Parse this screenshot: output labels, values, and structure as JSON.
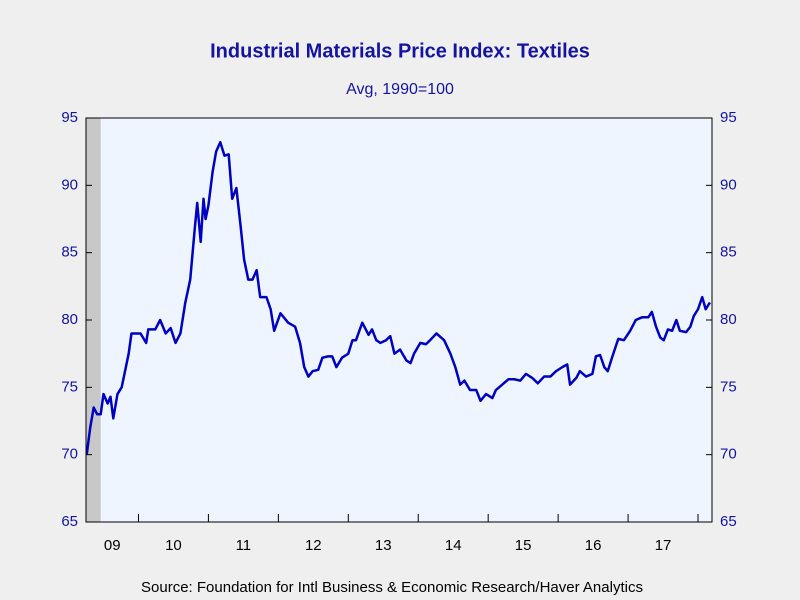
{
  "chart_data": {
    "type": "line",
    "title": "Industrial Materials Price Index: Textiles",
    "subtitle": "Avg, 1990=100",
    "source": "Source:  Foundation for Intl Business & Economic Research/Haver Analytics",
    "x": [
      2009.26,
      2009.31,
      2009.36,
      2009.41,
      2009.46,
      2009.5,
      2009.56,
      2009.6,
      2009.64,
      2009.7,
      2009.76,
      2009.8,
      2009.86,
      2009.9,
      2010.03,
      2010.11,
      2010.14,
      2010.24,
      2010.31,
      2010.39,
      2010.46,
      2010.53,
      2010.6,
      2010.67,
      2010.74,
      2010.8,
      2010.84,
      2010.89,
      2010.93,
      2010.96,
      2011.0,
      2011.06,
      2011.11,
      2011.17,
      2011.23,
      2011.29,
      2011.34,
      2011.4,
      2011.46,
      2011.51,
      2011.57,
      2011.63,
      2011.69,
      2011.74,
      2011.83,
      2011.89,
      2011.94,
      2012.03,
      2012.14,
      2012.24,
      2012.31,
      2012.37,
      2012.43,
      2012.49,
      2012.57,
      2012.63,
      2012.71,
      2012.77,
      2012.83,
      2012.91,
      2013.0,
      2013.06,
      2013.11,
      2013.2,
      2013.29,
      2013.34,
      2013.4,
      2013.46,
      2013.54,
      2013.6,
      2013.66,
      2013.74,
      2013.83,
      2013.89,
      2013.94,
      2014.03,
      2014.11,
      2014.17,
      2014.26,
      2014.37,
      2014.46,
      2014.53,
      2014.6,
      2014.66,
      2014.74,
      2014.83,
      2014.89,
      2014.97,
      2015.06,
      2015.11,
      2015.2,
      2015.29,
      2015.37,
      2015.46,
      2015.54,
      2015.63,
      2015.71,
      2015.8,
      2015.89,
      2015.97,
      2016.06,
      2016.13,
      2016.17,
      2016.26,
      2016.31,
      2016.4,
      2016.49,
      2016.54,
      2016.6,
      2016.66,
      2016.71,
      2016.77,
      2016.86,
      2016.94,
      2017.03,
      2017.11,
      2017.2,
      2017.29,
      2017.34,
      2017.4,
      2017.46,
      2017.51,
      2017.57,
      2017.63,
      2017.69,
      2017.74,
      2017.83,
      2017.89,
      2017.94,
      2018.0,
      2018.06,
      2018.11,
      2018.17
    ],
    "series": [
      {
        "name": "Textiles",
        "color": "#0000c0",
        "values": [
          70,
          72,
          73.5,
          73,
          73,
          74.5,
          73.8,
          74.3,
          72.7,
          74.5,
          75,
          76,
          77.5,
          79,
          79,
          78.3,
          79.3,
          79.3,
          80,
          79,
          79.4,
          78.3,
          79,
          81.3,
          83,
          86.5,
          88.7,
          85.8,
          89,
          87.5,
          88.5,
          91,
          92.5,
          93.2,
          92.2,
          92.3,
          89,
          89.8,
          87,
          84.5,
          83,
          83,
          83.7,
          81.7,
          81.7,
          80.8,
          79.2,
          80.5,
          79.8,
          79.5,
          78.3,
          76.5,
          75.8,
          76.2,
          76.3,
          77.2,
          77.3,
          77.3,
          76.5,
          77.2,
          77.5,
          78.5,
          78.5,
          79.8,
          78.9,
          79.3,
          78.5,
          78.3,
          78.5,
          78.8,
          77.5,
          77.8,
          77,
          76.8,
          77.5,
          78.3,
          78.2,
          78.5,
          79,
          78.5,
          77.5,
          76.5,
          75.2,
          75.5,
          74.8,
          74.8,
          74,
          74.5,
          74.2,
          74.8,
          75.2,
          75.6,
          75.6,
          75.5,
          76,
          75.7,
          75.3,
          75.8,
          75.8,
          76.2,
          76.5,
          76.7,
          75.2,
          75.7,
          76.2,
          75.8,
          76,
          77.3,
          77.4,
          76.5,
          76.2,
          77.2,
          78.6,
          78.5,
          79.2,
          80,
          80.2,
          80.2,
          80.6,
          79.5,
          78.7,
          78.5,
          79.3,
          79.2,
          80,
          79.2,
          79.1,
          79.5,
          80.3,
          80.8,
          81.7,
          80.8,
          81.3
        ]
      }
    ],
    "recession": [
      2009.25,
      2009.46
    ],
    "xlim": [
      2009.25,
      2018.2
    ],
    "xticks": [
      {
        "value": 2009.5,
        "label": "09"
      },
      {
        "value": 2010.5,
        "label": "10"
      },
      {
        "value": 2011.5,
        "label": "11"
      },
      {
        "value": 2012.5,
        "label": "12"
      },
      {
        "value": 2013.5,
        "label": "13"
      },
      {
        "value": 2014.5,
        "label": "14"
      },
      {
        "value": 2015.5,
        "label": "15"
      },
      {
        "value": 2016.5,
        "label": "16"
      },
      {
        "value": 2017.5,
        "label": "17"
      }
    ],
    "ylim": [
      65,
      95
    ],
    "yticks": [
      65,
      70,
      75,
      80,
      85,
      90,
      95
    ],
    "y2lim": [
      65,
      95
    ],
    "y2ticks": [
      65,
      70,
      75,
      80,
      85,
      90,
      95
    ]
  }
}
